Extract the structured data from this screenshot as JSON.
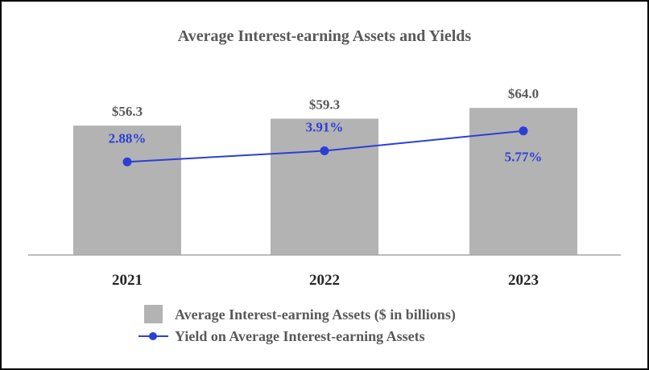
{
  "chart_data": {
    "type": "bar",
    "title": "Average Interest-earning Assets and Yields",
    "categories": [
      "2021",
      "2022",
      "2023"
    ],
    "series": [
      {
        "name": "Average Interest-earning Assets ($ in billions)",
        "kind": "bar",
        "values": [
          56.3,
          59.3,
          64.0
        ],
        "value_labels": [
          "$56.3",
          "$59.3",
          "$64.0"
        ],
        "color": "#b3b3b3"
      },
      {
        "name": "Yield on Average Interest-earning Assets",
        "kind": "line",
        "values": [
          2.88,
          3.91,
          5.77
        ],
        "value_labels": [
          "2.88%",
          "3.91%",
          "5.77%"
        ],
        "color": "#2b3fd6"
      }
    ],
    "bar_ylim": [
      0,
      70
    ],
    "line_ylim": [
      -5.8,
      9.2
    ],
    "grid": false,
    "legend_position": "bottom"
  }
}
